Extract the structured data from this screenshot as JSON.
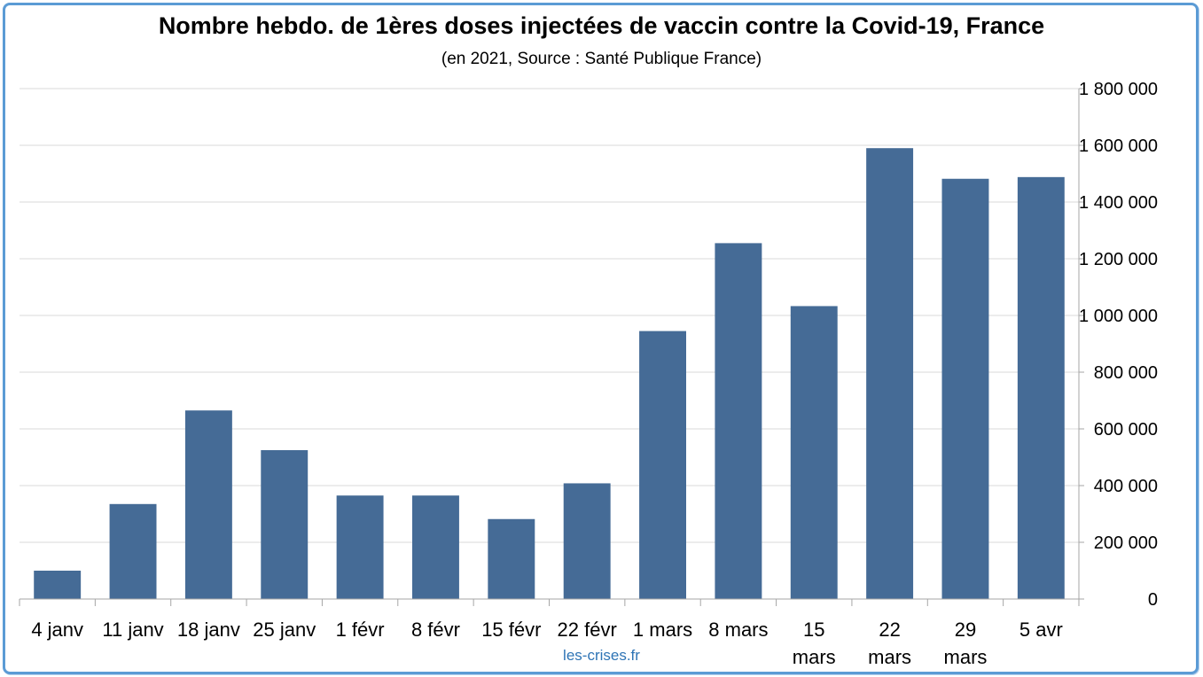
{
  "chart_data": {
    "type": "bar",
    "title": "Nombre hebdo. de 1ères doses injectées de vaccin contre la Covid-19, France",
    "subtitle": "(en 2021, Source : Santé Publique France)",
    "credit": "les-crises.fr",
    "categories": [
      [
        "4 janv"
      ],
      [
        "11 janv"
      ],
      [
        "18 janv"
      ],
      [
        "25 janv"
      ],
      [
        "1 févr"
      ],
      [
        "8 févr"
      ],
      [
        "15 févr"
      ],
      [
        "22 févr"
      ],
      [
        "1 mars"
      ],
      [
        "8 mars"
      ],
      [
        "15",
        "mars"
      ],
      [
        "22",
        "mars"
      ],
      [
        "29",
        "mars"
      ],
      [
        "5 avr"
      ]
    ],
    "values": [
      100000,
      335000,
      665000,
      525000,
      365000,
      365000,
      282000,
      408000,
      945000,
      1255000,
      1033000,
      1590000,
      1482000,
      1488000
    ],
    "ylim": [
      0,
      1800000
    ],
    "yticks": [
      0,
      200000,
      400000,
      600000,
      800000,
      1000000,
      1200000,
      1400000,
      1600000,
      1800000
    ],
    "ytick_labels": [
      "0",
      "200 000",
      "400 000",
      "600 000",
      "800 000",
      "1 000 000",
      "1 200 000",
      "1 400 000",
      "1 600 000",
      "1 800 000"
    ],
    "y_axis_side": "right",
    "grid": true,
    "bar_color": "#456b96",
    "grid_color": "#d9d9d9",
    "axis_color": "#a6a6a6",
    "border_color": "#5b9bd5",
    "credit_color": "#2e74b5"
  }
}
